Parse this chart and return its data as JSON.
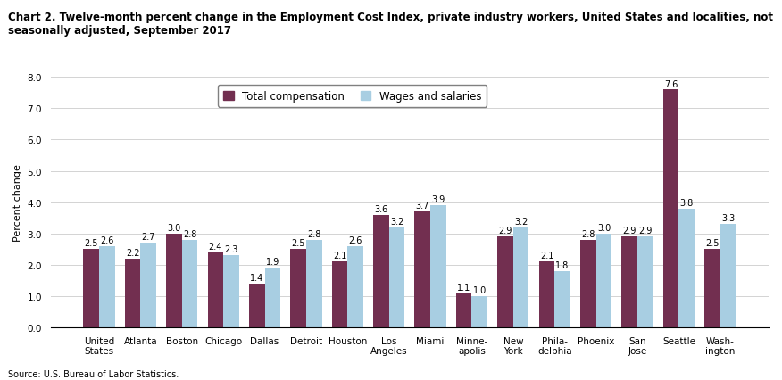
{
  "title": "Chart 2. Twelve-month percent change in the Employment Cost Index, private industry workers, United States and localities, not\nseasonally adjusted, September 2017",
  "ylabel": "Percent change",
  "categories": [
    "United\nStates",
    "Atlanta",
    "Boston",
    "Chicago",
    "Dallas",
    "Detroit",
    "Houston",
    "Los\nAngeles",
    "Miami",
    "Minne-\napolis",
    "New\nYork",
    "Phila-\ndelphia",
    "Phoenix",
    "San\nJose",
    "Seattle",
    "Wash-\nington"
  ],
  "total_compensation": [
    2.5,
    2.2,
    3.0,
    2.4,
    1.4,
    2.5,
    2.1,
    3.6,
    3.7,
    1.1,
    2.9,
    2.1,
    2.8,
    2.9,
    7.6,
    2.5
  ],
  "wages_and_salaries": [
    2.6,
    2.7,
    2.8,
    2.3,
    1.9,
    2.8,
    2.6,
    3.2,
    3.9,
    1.0,
    3.2,
    1.8,
    3.0,
    2.9,
    3.8,
    3.3
  ],
  "total_compensation_color": "#722F50",
  "wages_and_salaries_color": "#A8CEE2",
  "ylim": [
    0,
    8.0
  ],
  "yticks": [
    0.0,
    1.0,
    2.0,
    3.0,
    4.0,
    5.0,
    6.0,
    7.0,
    8.0
  ],
  "legend_labels": [
    "Total compensation",
    "Wages and salaries"
  ],
  "source": "Source: U.S. Bureau of Labor Statistics.",
  "bar_width": 0.38,
  "label_fontsize": 7.0,
  "title_fontsize": 8.5,
  "axis_label_fontsize": 8.0,
  "tick_fontsize": 7.5,
  "legend_fontsize": 8.5
}
